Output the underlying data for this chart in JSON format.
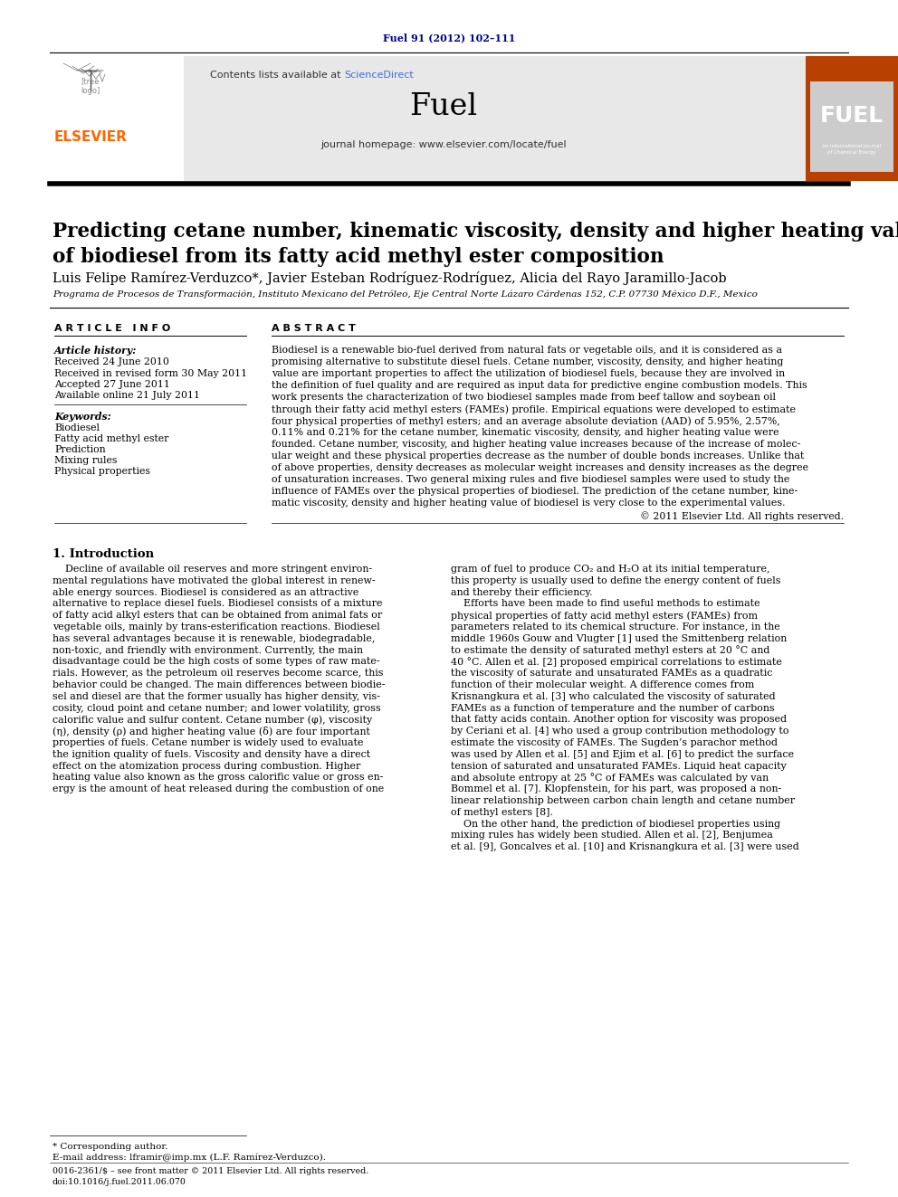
{
  "journal_ref": "Fuel 91 (2012) 102–111",
  "journal_ref_color": "#00008B",
  "contents_text": "Contents lists available at ",
  "sciencedirect_text": "ScienceDirect",
  "sciencedirect_color": "#4169E1",
  "journal_name": "Fuel",
  "journal_homepage": "journal homepage: www.elsevier.com/locate/fuel",
  "header_bg": "#E8E8E8",
  "elsevier_color": "#FF6600",
  "fuel_logo_bg": "#B84000",
  "paper_title": "Predicting cetane number, kinematic viscosity, density and higher heating value\nof biodiesel from its fatty acid methyl ester composition",
  "authors": "Luis Felipe Ramírez-Verduzco*, Javier Esteban Rodríguez-Rodríguez, Alicia del Rayo Jaramillo-Jacob",
  "affiliation": "Programa de Procesos de Transformación, Instituto Mexicano del Petróleo, Eje Central Norte Lázaro Cárdenas 152, C.P. 07730 México D.F., Mexico",
  "article_info_header": "A R T I C L E   I N F O",
  "abstract_header": "A B S T R A C T",
  "article_history_label": "Article history:",
  "received": "Received 24 June 2010",
  "received_revised": "Received in revised form 30 May 2011",
  "accepted": "Accepted 27 June 2011",
  "available": "Available online 21 July 2011",
  "keywords_label": "Keywords:",
  "keywords": [
    "Biodiesel",
    "Fatty acid methyl ester",
    "Prediction",
    "Mixing rules",
    "Physical properties"
  ],
  "copyright": "© 2011 Elsevier Ltd. All rights reserved.",
  "intro_header": "1. Introduction",
  "footnote_corresponding": "* Corresponding author.",
  "footnote_email": "E-mail address: lframir@imp.mx (L.F. Ramírez-Verduzco).",
  "footnote_issn": "0016-2361/$ – see front matter © 2011 Elsevier Ltd. All rights reserved.",
  "footnote_doi": "doi:10.1016/j.fuel.2011.06.070",
  "bg_color": "#FFFFFF",
  "text_color": "#000000",
  "abstract_lines": [
    "Biodiesel is a renewable bio-fuel derived from natural fats or vegetable oils, and it is considered as a",
    "promising alternative to substitute diesel fuels. Cetane number, viscosity, density, and higher heating",
    "value are important properties to affect the utilization of biodiesel fuels, because they are involved in",
    "the definition of fuel quality and are required as input data for predictive engine combustion models. This",
    "work presents the characterization of two biodiesel samples made from beef tallow and soybean oil",
    "through their fatty acid methyl esters (FAMEs) profile. Empirical equations were developed to estimate",
    "four physical properties of methyl esters; and an average absolute deviation (AAD) of 5.95%, 2.57%,",
    "0.11% and 0.21% for the cetane number, kinematic viscosity, density, and higher heating value were",
    "founded. Cetane number, viscosity, and higher heating value increases because of the increase of molec-",
    "ular weight and these physical properties decrease as the number of double bonds increases. Unlike that",
    "of above properties, density decreases as molecular weight increases and density increases as the degree",
    "of unsaturation increases. Two general mixing rules and five biodiesel samples were used to study the",
    "influence of FAMEs over the physical properties of biodiesel. The prediction of the cetane number, kine-",
    "matic viscosity, density and higher heating value of biodiesel is very close to the experimental values."
  ],
  "intro_col1_lines": [
    "    Decline of available oil reserves and more stringent environ-",
    "mental regulations have motivated the global interest in renew-",
    "able energy sources. Biodiesel is considered as an attractive",
    "alternative to replace diesel fuels. Biodiesel consists of a mixture",
    "of fatty acid alkyl esters that can be obtained from animal fats or",
    "vegetable oils, mainly by trans-esterification reactions. Biodiesel",
    "has several advantages because it is renewable, biodegradable,",
    "non-toxic, and friendly with environment. Currently, the main",
    "disadvantage could be the high costs of some types of raw mate-",
    "rials. However, as the petroleum oil reserves become scarce, this",
    "behavior could be changed. The main differences between biodie-",
    "sel and diesel are that the former usually has higher density, vis-",
    "cosity, cloud point and cetane number; and lower volatility, gross",
    "calorific value and sulfur content. Cetane number (φ), viscosity",
    "(η), density (ρ) and higher heating value (δ) are four important",
    "properties of fuels. Cetane number is widely used to evaluate",
    "the ignition quality of fuels. Viscosity and density have a direct",
    "effect on the atomization process during combustion. Higher",
    "heating value also known as the gross calorific value or gross en-",
    "ergy is the amount of heat released during the combustion of one"
  ],
  "intro_col2_lines": [
    "gram of fuel to produce CO₂ and H₂O at its initial temperature,",
    "this property is usually used to define the energy content of fuels",
    "and thereby their efficiency.",
    "    Efforts have been made to find useful methods to estimate",
    "physical properties of fatty acid methyl esters (FAMEs) from",
    "parameters related to its chemical structure. For instance, in the",
    "middle 1960s Gouw and Vlugter [1] used the Smittenberg relation",
    "to estimate the density of saturated methyl esters at 20 °C and",
    "40 °C. Allen et al. [2] proposed empirical correlations to estimate",
    "the viscosity of saturate and unsaturated FAMEs as a quadratic",
    "function of their molecular weight. A difference comes from",
    "Krisnangkura et al. [3] who calculated the viscosity of saturated",
    "FAMEs as a function of temperature and the number of carbons",
    "that fatty acids contain. Another option for viscosity was proposed",
    "by Ceriani et al. [4] who used a group contribution methodology to",
    "estimate the viscosity of FAMEs. The Sugden’s parachor method",
    "was used by Allen et al. [5] and Ejim et al. [6] to predict the surface",
    "tension of saturated and unsaturated FAMEs. Liquid heat capacity",
    "and absolute entropy at 25 °C of FAMEs was calculated by van",
    "Bommel et al. [7]. Klopfenstein, for his part, was proposed a non-",
    "linear relationship between carbon chain length and cetane number",
    "of methyl esters [8].",
    "    On the other hand, the prediction of biodiesel properties using",
    "mixing rules has widely been studied. Allen et al. [2], Benjumea",
    "et al. [9], Goncalves et al. [10] and Krisnangkura et al. [3] were used"
  ]
}
